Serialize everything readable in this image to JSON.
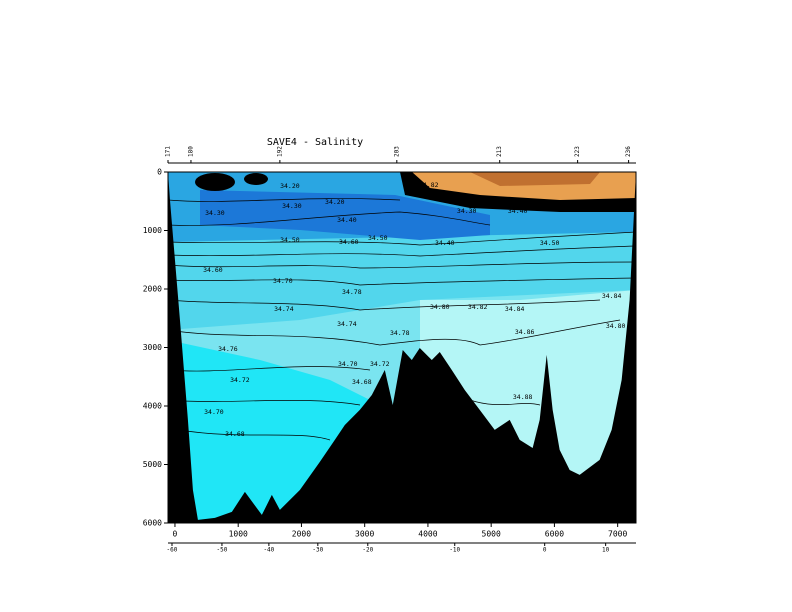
{
  "chart_data": {
    "type": "section",
    "title": "SAVE4 - Salinity",
    "y_inverted": true,
    "xlim": [
      -110,
      7290
    ],
    "ylim": [
      0,
      6000
    ],
    "xticks": [
      0,
      1000,
      2000,
      3000,
      4000,
      5000,
      6000,
      7000
    ],
    "yticks": [
      0,
      1000,
      2000,
      3000,
      4000,
      5000,
      6000
    ],
    "lat_ticks": [
      {
        "value": -47,
        "label": "-60"
      },
      {
        "value": 743,
        "label": "-50"
      },
      {
        "value": 1485,
        "label": "-40"
      },
      {
        "value": 2259,
        "label": "-30"
      },
      {
        "value": 3049,
        "label": "-20"
      },
      {
        "value": 4424,
        "label": "-10"
      },
      {
        "value": 5846,
        "label": "0"
      },
      {
        "value": 6810,
        "label": "10"
      }
    ],
    "station_ticks": [
      {
        "value": -110,
        "label": "171"
      },
      {
        "value": 253,
        "label": "180"
      },
      {
        "value": 1659,
        "label": "192"
      },
      {
        "value": 3508,
        "label": "203"
      },
      {
        "value": 5135,
        "label": "213"
      },
      {
        "value": 6367,
        "label": "223"
      },
      {
        "value": 7173,
        "label": "236"
      }
    ],
    "bathymetry": {
      "x": [
        -79,
        79,
        205,
        284,
        363,
        632,
        900,
        1106,
        1374,
        1532,
        1659,
        1975,
        2291,
        2528,
        2686,
        2923,
        3113,
        3318,
        3444,
        3602,
        3745,
        3871,
        4061,
        4187,
        4377,
        4582,
        4819,
        5056,
        5293,
        5451,
        5656,
        5767,
        5878,
        5972,
        6083,
        6241,
        6399,
        6715,
        6905,
        7063,
        7189
      ],
      "depth": [
        479,
        2530,
        4239,
        5435,
        5947,
        5913,
        5810,
        5469,
        5862,
        5520,
        5776,
        5435,
        4956,
        4580,
        4324,
        4067,
        3811,
        3384,
        3982,
        3042,
        3213,
        3008,
        3213,
        3076,
        3384,
        3726,
        4067,
        4409,
        4238,
        4580,
        4717,
        4238,
        3127,
        4067,
        4751,
        5093,
        5178,
        4922,
        4409,
        3555,
        2188
      ]
    },
    "contour_labels": {
      "x": [
        1817,
        2528,
        1849,
        632,
        2718,
        4613,
        5419,
        1817,
        2749,
        3207,
        4266,
        5925,
        600,
        1706,
        2797,
        4187,
        4787,
        5372,
        5530,
        5498,
        6905,
        6968,
        3555,
        2718,
        2733,
        3239,
        2955,
        1027,
        616,
        948,
        4013,
        1722,
        837
      ],
      "depth": [
        239,
        513,
        581,
        700,
        820,
        667,
        667,
        1162,
        1196,
        1128,
        1213,
        1213,
        1675,
        1863,
        2051,
        2307,
        2307,
        2341,
        2734,
        3845,
        2119,
        2632,
        2751,
        2597,
        3281,
        3281,
        3589,
        3555,
        4102,
        4478,
        222,
        2341,
        3025
      ],
      "labels": [
        "34.20",
        "34.20",
        "34.30",
        "34.30",
        "34.40",
        "34.30",
        "34.40",
        "34.50",
        "34.60",
        "34.50",
        "34.40",
        "34.50",
        "34.60",
        "34.70",
        "34.78",
        "34.80",
        "34.82",
        "34.84",
        "34.86",
        "34.88",
        "34.84",
        "34.80",
        "34.78",
        "34.74",
        "34.70",
        "34.72",
        "34.68",
        "34.72",
        "34.70",
        "34.68",
        "34.82",
        "34.74",
        "34.76"
      ]
    },
    "bathymetry_color": "#000000"
  }
}
